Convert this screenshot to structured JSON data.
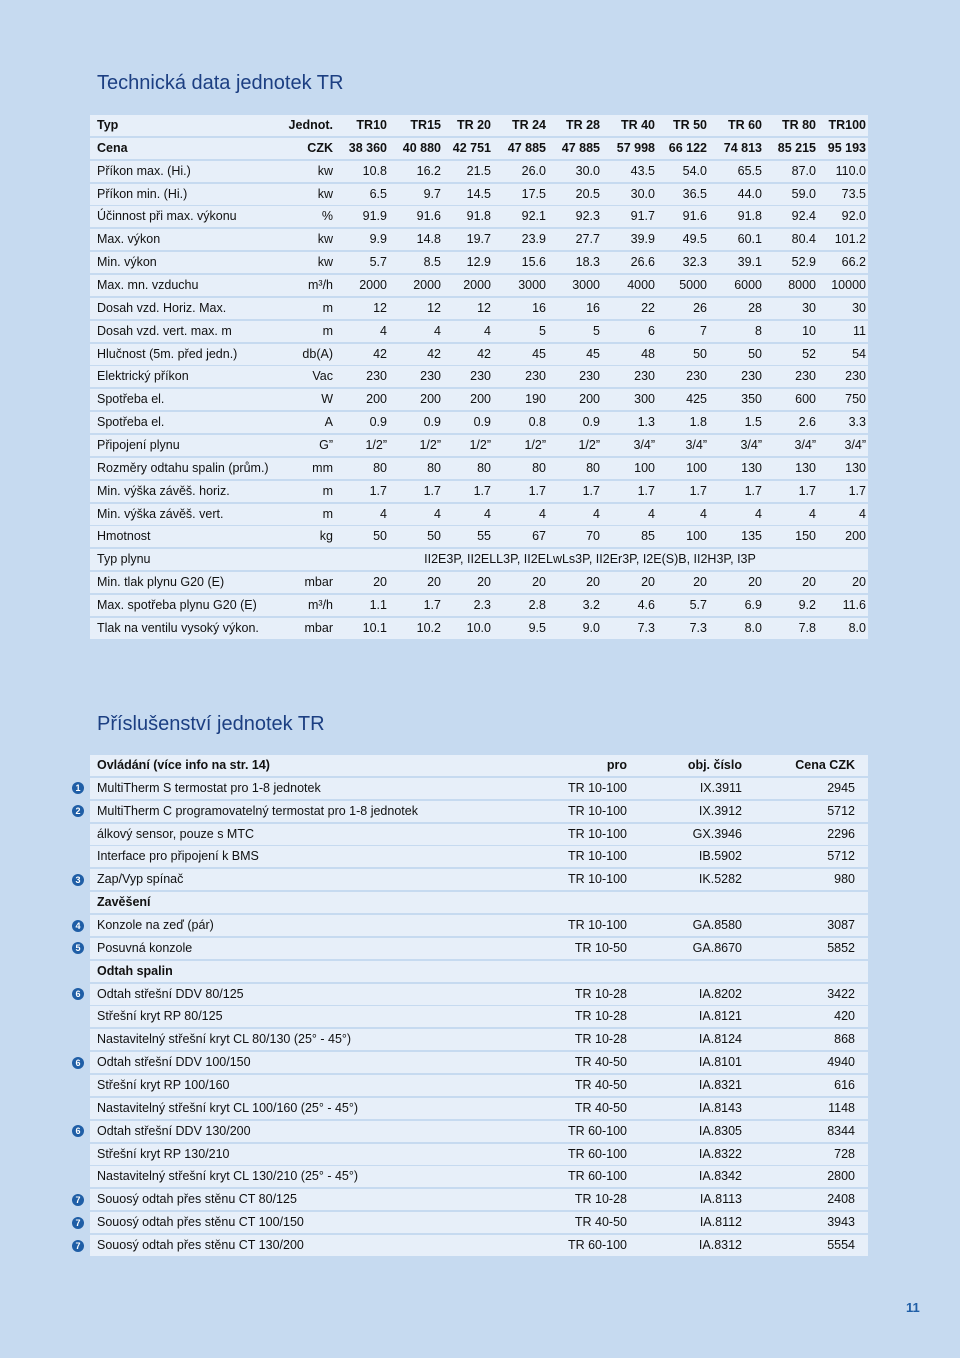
{
  "title1": "Technická data jednotek TR",
  "table1": {
    "header": [
      "Typ",
      "Jednot.",
      "TR10",
      "TR15",
      "TR 20",
      "TR 24",
      "TR 28",
      "TR 40",
      "TR 50",
      "TR 60",
      "TR 80",
      "TR100"
    ],
    "rows": [
      [
        "Cena",
        "CZK",
        "38 360",
        "40 880",
        "42 751",
        "47 885",
        "47 885",
        "57 998",
        "66 122",
        "74 813",
        "85 215",
        "95 193"
      ],
      [
        "Příkon max. (Hi.)",
        "kw",
        "10.8",
        "16.2",
        "21.5",
        "26.0",
        "30.0",
        "43.5",
        "54.0",
        "65.5",
        "87.0",
        "110.0"
      ],
      [
        "Příkon min. (Hi.)",
        "kw",
        "6.5",
        "9.7",
        "14.5",
        "17.5",
        "20.5",
        "30.0",
        "36.5",
        "44.0",
        "59.0",
        "73.5"
      ],
      [
        "Účinnost při max. výkonu",
        "%",
        "91.9",
        "91.6",
        "91.8",
        "92.1",
        "92.3",
        "91.7",
        "91.6",
        "91.8",
        "92.4",
        "92.0"
      ],
      [
        "Max. výkon",
        "kw",
        "9.9",
        "14.8",
        "19.7",
        "23.9",
        "27.7",
        "39.9",
        "49.5",
        "60.1",
        "80.4",
        "101.2"
      ],
      [
        "Min. výkon",
        "kw",
        "5.7",
        "8.5",
        "12.9",
        "15.6",
        "18.3",
        "26.6",
        "32.3",
        "39.1",
        "52.9",
        "66.2"
      ],
      [
        "Max. mn. vzduchu",
        "m³/h",
        "2000",
        "2000",
        "2000",
        "3000",
        "3000",
        "4000",
        "5000",
        "6000",
        "8000",
        "10000"
      ],
      [
        "Dosah vzd. Horiz. Max.",
        "m",
        "12",
        "12",
        "12",
        "16",
        "16",
        "22",
        "26",
        "28",
        "30",
        "30"
      ],
      [
        "Dosah vzd. vert. max. m",
        "m",
        "4",
        "4",
        "4",
        "5",
        "5",
        "6",
        "7",
        "8",
        "10",
        "11"
      ],
      [
        "Hlučnost (5m. před jedn.)",
        "db(A)",
        "42",
        "42",
        "42",
        "45",
        "45",
        "48",
        "50",
        "50",
        "52",
        "54"
      ],
      [
        "Elektrický příkon",
        "Vac",
        "230",
        "230",
        "230",
        "230",
        "230",
        "230",
        "230",
        "230",
        "230",
        "230"
      ],
      [
        "Spotřeba el.",
        "W",
        "200",
        "200",
        "200",
        "190",
        "200",
        "300",
        "425",
        "350",
        "600",
        "750"
      ],
      [
        "Spotřeba el.",
        "A",
        "0.9",
        "0.9",
        "0.9",
        "0.8",
        "0.9",
        "1.3",
        "1.8",
        "1.5",
        "2.6",
        "3.3"
      ],
      [
        "Připojení plynu",
        "G”",
        "1/2”",
        "1/2”",
        "1/2”",
        "1/2”",
        "1/2”",
        "3/4”",
        "3/4”",
        "3/4”",
        "3/4”",
        "3/4”"
      ],
      [
        "Rozměry odtahu spalin (prům.)",
        "mm",
        "80",
        "80",
        "80",
        "80",
        "80",
        "100",
        "100",
        "130",
        "130",
        "130"
      ],
      [
        "Min. výška závěš. horiz.",
        "m",
        "1.7",
        "1.7",
        "1.7",
        "1.7",
        "1.7",
        "1.7",
        "1.7",
        "1.7",
        "1.7",
        "1.7"
      ],
      [
        "Min. výška závěš. vert.",
        "m",
        "4",
        "4",
        "4",
        "4",
        "4",
        "4",
        "4",
        "4",
        "4",
        "4"
      ],
      [
        "Hmotnost",
        "kg",
        "50",
        "50",
        "55",
        "67",
        "70",
        "85",
        "100",
        "135",
        "150",
        "200"
      ],
      [
        "Typ plynu",
        "II2E3P, II2ELL3P, II2ELwLs3P, II2Er3P, I2E(S)B, II2H3P, I3P"
      ],
      [
        "Min. tlak plynu G20 (E)",
        "mbar",
        "20",
        "20",
        "20",
        "20",
        "20",
        "20",
        "20",
        "20",
        "20",
        "20"
      ],
      [
        "Max. spotřeba plynu G20 (E)",
        "m³/h",
        "1.1",
        "1.7",
        "2.3",
        "2.8",
        "3.2",
        "4.6",
        "5.7",
        "6.9",
        "9.2",
        "11.6"
      ],
      [
        "Tlak na ventilu vysoký výkon.",
        "mbar",
        "10.1",
        "10.2",
        "10.0",
        "9.5",
        "9.0",
        "7.3",
        "7.3",
        "8.0",
        "7.8",
        "8.0"
      ]
    ]
  },
  "title2": "Příslušenství jednotek TR",
  "table2": {
    "header": [
      "Ovládání (více info na str. 14)",
      "pro",
      "obj. číslo",
      "Cena CZK"
    ],
    "rows": [
      {
        "badge": "1",
        "cells": [
          "MultiTherm S termostat pro 1-8 jednotek",
          "TR 10-100",
          "IX.3911",
          "2945"
        ]
      },
      {
        "badge": "2",
        "cells": [
          "MultiTherm C programovatelný termostat pro 1-8 jednotek",
          "TR 10-100",
          "IX.3912",
          "5712"
        ]
      },
      {
        "cells": [
          "álkový sensor, pouze s MTC",
          "TR 10-100",
          "GX.3946",
          "2296"
        ]
      },
      {
        "cells": [
          "Interface pro připojení k BMS",
          "TR 10-100",
          "IB.5902",
          "5712"
        ]
      },
      {
        "badge": "3",
        "cells": [
          "Zap/Vyp spínač",
          "TR 10-100",
          "IK.5282",
          "980"
        ]
      },
      {
        "section": "Zavěšení"
      },
      {
        "badge": "4",
        "cells": [
          "Konzole na zeď (pár)",
          "TR 10-100",
          "GA.8580",
          "3087"
        ]
      },
      {
        "badge": "5",
        "cells": [
          "Posuvná konzole",
          "TR 10-50",
          "GA.8670",
          "5852"
        ]
      },
      {
        "section": "Odtah spalin"
      },
      {
        "badge": "6",
        "cells": [
          "Odtah střešní DDV 80/125",
          "TR 10-28",
          "IA.8202",
          "3422"
        ]
      },
      {
        "cells": [
          "Střešní kryt RP 80/125",
          "TR 10-28",
          "IA.8121",
          "420"
        ]
      },
      {
        "cells": [
          "Nastavitelný střešní kryt CL 80/130 (25° - 45°)",
          "TR 10-28",
          "IA.8124",
          "868"
        ]
      },
      {
        "badge": "6",
        "cells": [
          "Odtah střešní DDV 100/150",
          "TR 40-50",
          "IA.8101",
          "4940"
        ]
      },
      {
        "cells": [
          "Střešní kryt RP 100/160",
          "TR 40-50",
          "IA.8321",
          "616"
        ]
      },
      {
        "cells": [
          "Nastavitelný střešní kryt CL 100/160 (25° - 45°)",
          "TR 40-50",
          "IA.8143",
          "1148"
        ]
      },
      {
        "badge": "6",
        "cells": [
          "Odtah střešní DDV 130/200",
          "TR 60-100",
          "IA.8305",
          "8344"
        ]
      },
      {
        "cells": [
          "Střešní kryt RP 130/210",
          "TR 60-100",
          "IA.8322",
          "728"
        ]
      },
      {
        "cells": [
          "Nastavitelný střešní kryt CL 130/210 (25° - 45°)",
          "TR 60-100",
          "IA.8342",
          "2800"
        ]
      },
      {
        "badge": "7",
        "cells": [
          "Souosý odtah přes stěnu CT 80/125",
          "TR 10-28",
          "IA.8113",
          "2408"
        ]
      },
      {
        "badge": "7",
        "cells": [
          "Souosý odtah přes stěnu CT 100/150",
          "TR 40-50",
          "IA.8112",
          "3943"
        ]
      },
      {
        "badge": "7",
        "cells": [
          "Souosý odtah přes stěnu CT 130/200",
          "TR 60-100",
          "IA.8312",
          "5554"
        ]
      }
    ]
  },
  "page_number": "11"
}
